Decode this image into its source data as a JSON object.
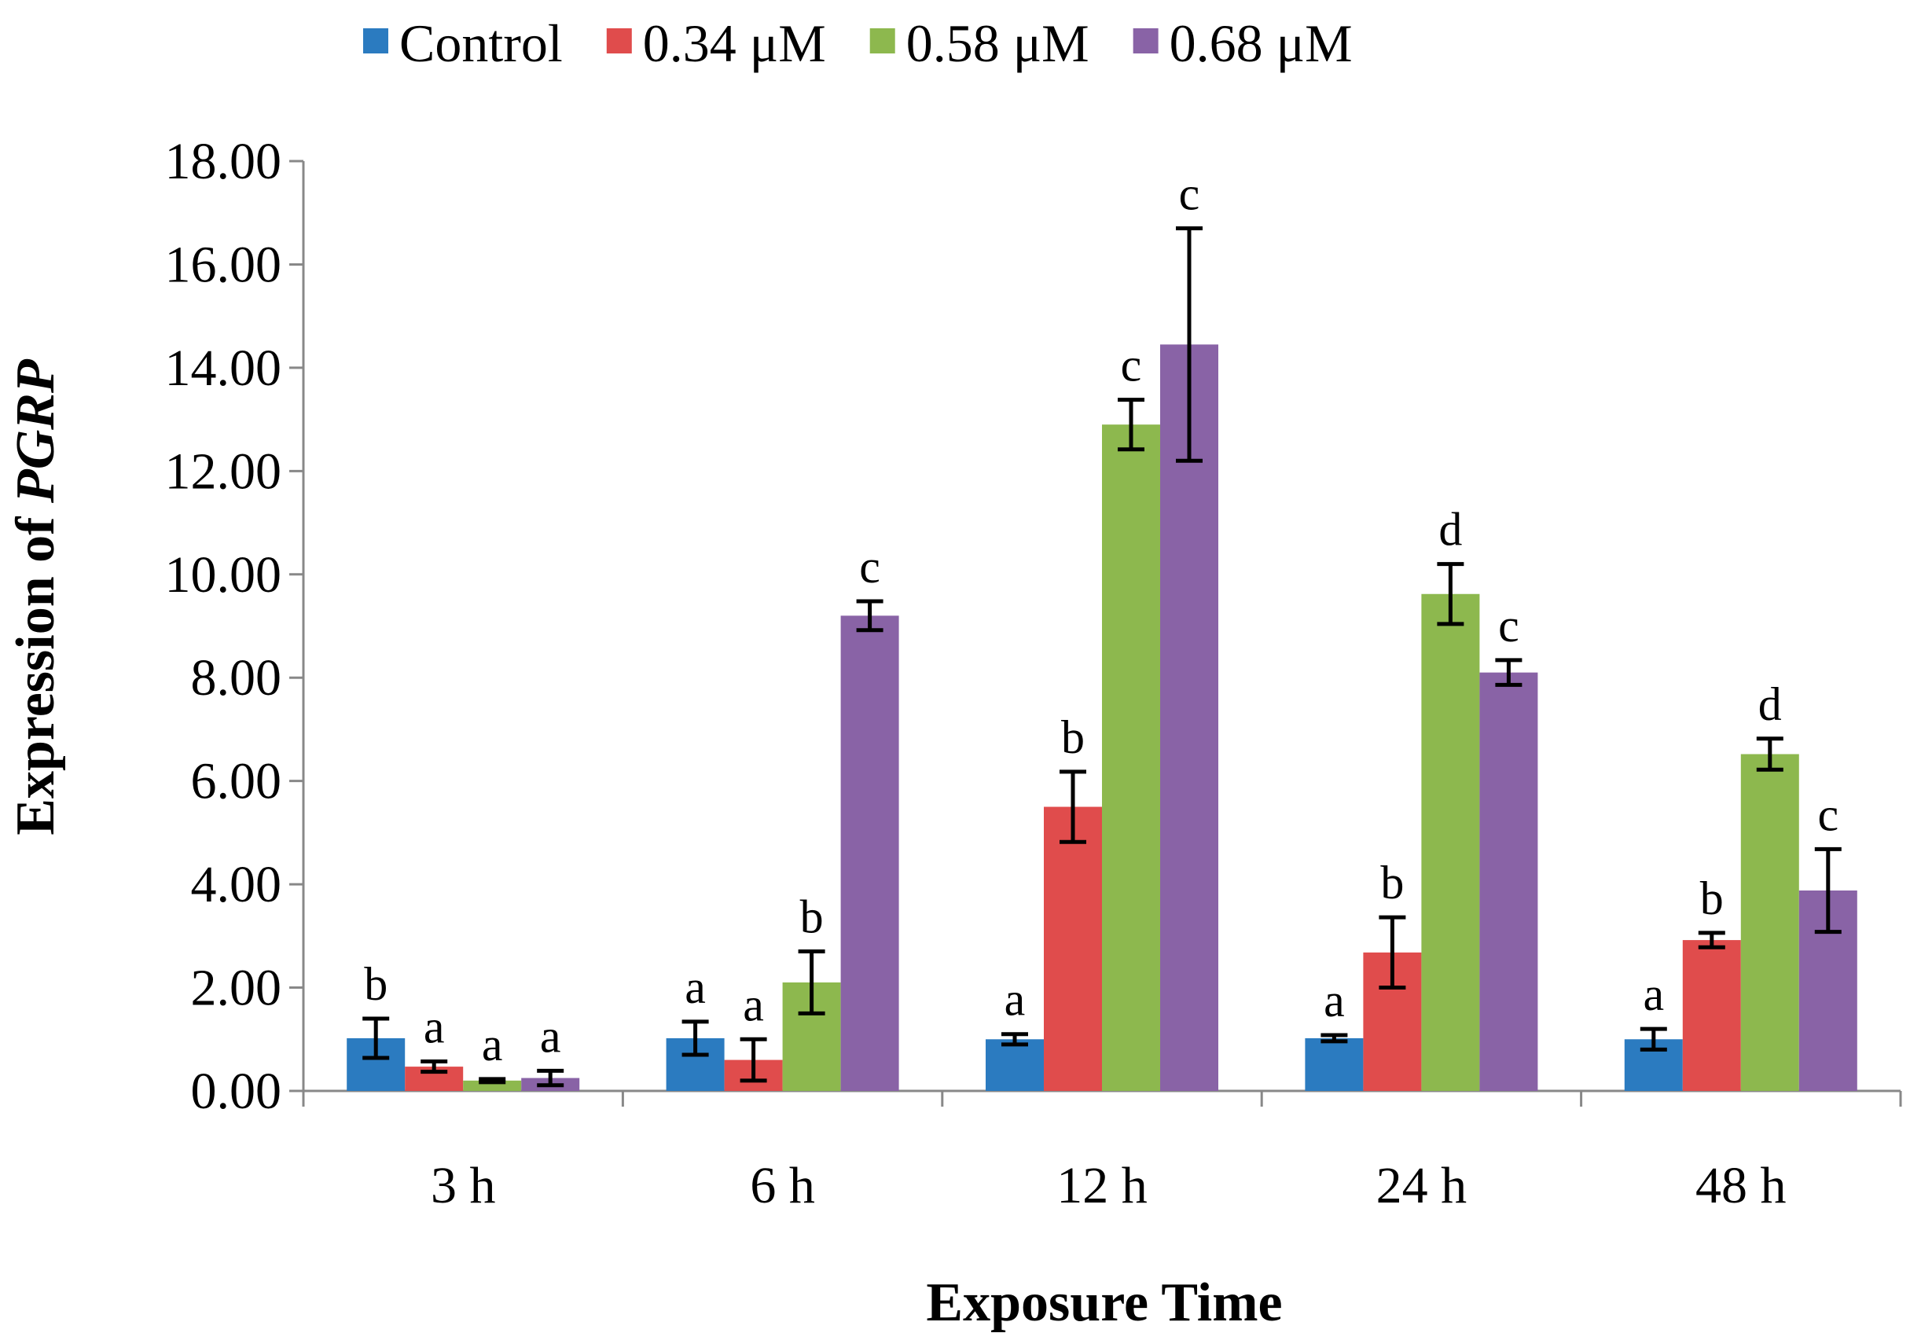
{
  "chart_data": {
    "type": "bar",
    "title": "",
    "xlabel": "Exposure Time",
    "ylabel_prefix": "Expression of ",
    "ylabel_gene": "PGRP",
    "ylim": [
      0,
      18
    ],
    "ytick_values": [
      0,
      2,
      4,
      6,
      8,
      10,
      12,
      14,
      16,
      18
    ],
    "ytick_labels": [
      "0.00",
      "2.00",
      "4.00",
      "6.00",
      "8.00",
      "10.00",
      "12.00",
      "14.00",
      "16.00",
      "18.00"
    ],
    "categories": [
      "3 h",
      "6 h",
      "12 h",
      "24 h",
      "48 h"
    ],
    "legend_position": "top",
    "series": [
      {
        "name": "Control",
        "color": "#2b7bc0",
        "values": [
          1.02,
          1.02,
          1.0,
          1.02,
          1.0
        ],
        "errors": [
          0.38,
          0.32,
          0.1,
          0.06,
          0.2
        ],
        "significance": [
          "b",
          "a",
          "a",
          "a",
          "a"
        ]
      },
      {
        "name": "0.34 μM",
        "color": "#e04c4c",
        "values": [
          0.47,
          0.6,
          5.5,
          2.68,
          2.92
        ],
        "errors": [
          0.1,
          0.4,
          0.68,
          0.68,
          0.14
        ],
        "significance": [
          "a",
          "a",
          "b",
          "b",
          "b"
        ]
      },
      {
        "name": "0.58 μM",
        "color": "#8db84e",
        "values": [
          0.2,
          2.1,
          12.9,
          9.62,
          6.52
        ],
        "errors": [
          0.03,
          0.6,
          0.48,
          0.58,
          0.3
        ],
        "significance": [
          "a",
          "b",
          "c",
          "d",
          "d"
        ]
      },
      {
        "name": "0.68 μM",
        "color": "#8963a6",
        "values": [
          0.25,
          9.2,
          14.45,
          8.1,
          3.88
        ],
        "errors": [
          0.14,
          0.28,
          2.25,
          0.24,
          0.8
        ],
        "significance": [
          "a",
          "c",
          "c",
          "c",
          "c"
        ]
      }
    ]
  }
}
